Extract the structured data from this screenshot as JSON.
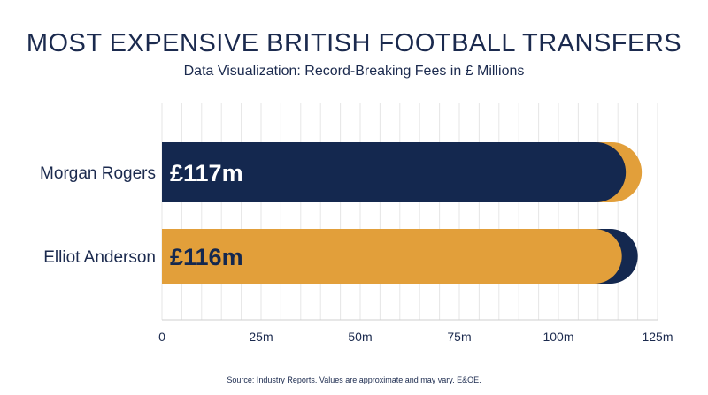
{
  "title": "MOST EXPENSIVE BRITISH FOOTBALL TRANSFERS",
  "subtitle": "Data Visualization: Record-Breaking Fees in £ Millions",
  "source": "Source: Industry Reports. Values are approximate and may vary. E&OE.",
  "colors": {
    "navy": "#14284f",
    "gold": "#e29f3a",
    "grid": "#e6e6e6"
  },
  "chart_data": {
    "type": "bar",
    "orientation": "horizontal",
    "categories": [
      "Morgan Rogers",
      "Elliot Anderson"
    ],
    "values": [
      117,
      116
    ],
    "data_labels": [
      "£117m",
      "£116m"
    ],
    "bar_colors": [
      "#14284f",
      "#e29f3a"
    ],
    "accent_colors": [
      "#e29f3a",
      "#14284f"
    ],
    "xlim": [
      0,
      125
    ],
    "xticks": [
      0,
      25,
      50,
      75,
      100,
      125
    ],
    "xtick_labels": [
      "0",
      "25m",
      "50m",
      "75m",
      "100m",
      "125m"
    ],
    "grid": true
  }
}
